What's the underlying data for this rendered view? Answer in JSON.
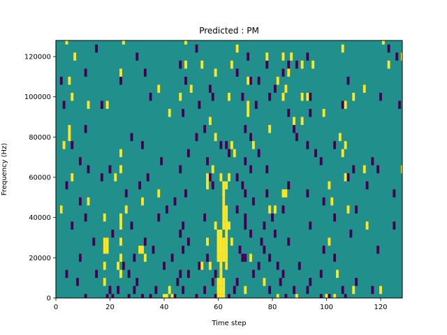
{
  "chart_data": {
    "type": "heatmap",
    "title": "Predicted : PM",
    "xlabel": "Time step",
    "ylabel": "Frequency (Hz)",
    "xlim": [
      0,
      128
    ],
    "ylim": [
      0,
      128000
    ],
    "xticks": [
      0,
      20,
      40,
      60,
      80,
      100,
      120
    ],
    "yticks": [
      0,
      20000,
      40000,
      60000,
      80000,
      100000,
      120000
    ],
    "grid": false,
    "colors": {
      "background": "#21908d",
      "low": "#440154",
      "high": "#fde725"
    },
    "value_scale": "background = 0, low = -1, high = 1",
    "cell_height_hz": 4000,
    "low_cells": [
      [
        11,
        0
      ],
      [
        19,
        0
      ],
      [
        21,
        0
      ],
      [
        27,
        0
      ],
      [
        32,
        0
      ],
      [
        35,
        0
      ],
      [
        44,
        0
      ],
      [
        52,
        0
      ],
      [
        59,
        0
      ],
      [
        64,
        0
      ],
      [
        85,
        0
      ],
      [
        98,
        0
      ],
      [
        101,
        0
      ],
      [
        107,
        0
      ],
      [
        20,
        4000
      ],
      [
        23,
        4000
      ],
      [
        29,
        4000
      ],
      [
        37,
        4000
      ],
      [
        47,
        4000
      ],
      [
        55,
        4000
      ],
      [
        66,
        4000
      ],
      [
        79,
        4000
      ],
      [
        88,
        4000
      ],
      [
        93,
        4000
      ],
      [
        106,
        4000
      ],
      [
        117,
        4000
      ],
      [
        8,
        8000
      ],
      [
        30,
        8000
      ],
      [
        45,
        8000
      ],
      [
        58,
        8000
      ],
      [
        67,
        8000
      ],
      [
        83,
        8000
      ],
      [
        94,
        8000
      ],
      [
        111,
        8000
      ],
      [
        4,
        12000
      ],
      [
        15,
        12000
      ],
      [
        27,
        12000
      ],
      [
        46,
        12000
      ],
      [
        49,
        12000
      ],
      [
        59,
        12000
      ],
      [
        73,
        12000
      ],
      [
        84,
        12000
      ],
      [
        98,
        12000
      ],
      [
        25,
        16000
      ],
      [
        40,
        16000
      ],
      [
        53,
        16000
      ],
      [
        63,
        16000
      ],
      [
        75,
        16000
      ],
      [
        82,
        16000
      ],
      [
        90,
        16000
      ],
      [
        9,
        20000
      ],
      [
        29,
        20000
      ],
      [
        43,
        20000
      ],
      [
        56,
        20000
      ],
      [
        69,
        20000
      ],
      [
        70,
        20000
      ],
      [
        79,
        20000
      ],
      [
        103,
        20000
      ],
      [
        36,
        24000
      ],
      [
        47,
        24000
      ],
      [
        68,
        24000
      ],
      [
        77,
        24000
      ],
      [
        99,
        24000
      ],
      [
        119,
        24000
      ],
      [
        14,
        28000
      ],
      [
        33,
        28000
      ],
      [
        49,
        28000
      ],
      [
        65,
        28000
      ],
      [
        76,
        28000
      ],
      [
        86,
        28000
      ],
      [
        21,
        32000
      ],
      [
        46,
        32000
      ],
      [
        72,
        32000
      ],
      [
        81,
        32000
      ],
      [
        109,
        32000
      ],
      [
        6,
        36000
      ],
      [
        28,
        36000
      ],
      [
        47,
        36000
      ],
      [
        70,
        36000
      ],
      [
        77,
        36000
      ],
      [
        94,
        36000
      ],
      [
        125,
        36000
      ],
      [
        11,
        40000
      ],
      [
        38,
        40000
      ],
      [
        55,
        40000
      ],
      [
        70,
        40000
      ],
      [
        80,
        40000
      ],
      [
        103,
        40000
      ],
      [
        2,
        44000
      ],
      [
        41,
        44000
      ],
      [
        67,
        44000
      ],
      [
        84,
        44000
      ],
      [
        111,
        44000
      ],
      [
        9,
        48000
      ],
      [
        44,
        48000
      ],
      [
        62,
        48000
      ],
      [
        73,
        48000
      ],
      [
        99,
        48000
      ],
      [
        26,
        52000
      ],
      [
        48,
        52000
      ],
      [
        70,
        52000
      ],
      [
        78,
        52000
      ],
      [
        93,
        52000
      ],
      [
        125,
        52000
      ],
      [
        4,
        56000
      ],
      [
        31,
        56000
      ],
      [
        58,
        56000
      ],
      [
        69,
        56000
      ],
      [
        86,
        56000
      ],
      [
        115,
        56000
      ],
      [
        17,
        60000
      ],
      [
        34,
        60000
      ],
      [
        57,
        60000
      ],
      [
        67,
        60000
      ],
      [
        108,
        60000
      ],
      [
        12,
        64000
      ],
      [
        20,
        64000
      ],
      [
        46,
        64000
      ],
      [
        72,
        64000
      ],
      [
        78,
        64000
      ],
      [
        110,
        64000
      ],
      [
        119,
        64000
      ],
      [
        9,
        68000
      ],
      [
        39,
        68000
      ],
      [
        56,
        68000
      ],
      [
        70,
        68000
      ],
      [
        98,
        68000
      ],
      [
        117,
        68000
      ],
      [
        49,
        72000
      ],
      [
        64,
        72000
      ],
      [
        75,
        72000
      ],
      [
        96,
        72000
      ],
      [
        6,
        76000
      ],
      [
        32,
        76000
      ],
      [
        61,
        76000
      ],
      [
        63,
        76000
      ],
      [
        93,
        76000
      ],
      [
        103,
        76000
      ],
      [
        28,
        80000
      ],
      [
        52,
        80000
      ],
      [
        72,
        80000
      ],
      [
        89,
        80000
      ],
      [
        11,
        84000
      ],
      [
        55,
        84000
      ],
      [
        70,
        84000
      ],
      [
        88,
        84000
      ],
      [
        47,
        92000
      ],
      [
        86,
        92000
      ],
      [
        94,
        92000
      ],
      [
        3,
        96000
      ],
      [
        17,
        96000
      ],
      [
        53,
        96000
      ],
      [
        74,
        96000
      ],
      [
        106,
        96000
      ],
      [
        127,
        96000
      ],
      [
        35,
        100000
      ],
      [
        58,
        100000
      ],
      [
        69,
        100000
      ],
      [
        79,
        100000
      ],
      [
        94,
        100000
      ],
      [
        120,
        100000
      ],
      [
        57,
        104000
      ],
      [
        81,
        104000
      ],
      [
        2,
        108000
      ],
      [
        24,
        108000
      ],
      [
        48,
        108000
      ],
      [
        72,
        108000
      ],
      [
        75,
        108000
      ],
      [
        108,
        108000
      ],
      [
        11,
        112000
      ],
      [
        33,
        112000
      ],
      [
        67,
        112000
      ],
      [
        84,
        112000
      ],
      [
        46,
        116000
      ],
      [
        78,
        116000
      ],
      [
        86,
        116000
      ],
      [
        89,
        116000
      ],
      [
        30,
        120000
      ],
      [
        71,
        120000
      ],
      [
        93,
        120000
      ],
      [
        126,
        120000
      ],
      [
        15,
        124000
      ],
      [
        52,
        124000
      ],
      [
        123,
        124000
      ]
    ],
    "high_cells": [
      [
        40,
        0
      ],
      [
        41,
        0
      ],
      [
        43,
        0
      ],
      [
        60,
        0
      ],
      [
        61,
        0
      ],
      [
        62,
        0
      ],
      [
        82,
        0
      ],
      [
        89,
        0
      ],
      [
        100,
        0
      ],
      [
        103,
        0
      ],
      [
        42,
        4000
      ],
      [
        60,
        4000
      ],
      [
        61,
        4000
      ],
      [
        62,
        4000
      ],
      [
        70,
        4000
      ],
      [
        110,
        4000
      ],
      [
        120,
        4000
      ],
      [
        18,
        8000
      ],
      [
        60,
        8000
      ],
      [
        61,
        8000
      ],
      [
        62,
        8000
      ],
      [
        77,
        8000
      ],
      [
        24,
        12000
      ],
      [
        61,
        12000
      ],
      [
        104,
        12000
      ],
      [
        18,
        16000
      ],
      [
        23,
        16000
      ],
      [
        54,
        16000
      ],
      [
        57,
        16000
      ],
      [
        61,
        16000
      ],
      [
        63,
        16000
      ],
      [
        24,
        20000
      ],
      [
        33,
        20000
      ],
      [
        60,
        20000
      ],
      [
        61,
        20000
      ],
      [
        62,
        20000
      ],
      [
        63,
        20000
      ],
      [
        72,
        20000
      ],
      [
        18,
        24000
      ],
      [
        19,
        24000
      ],
      [
        31,
        24000
      ],
      [
        32,
        24000
      ],
      [
        60,
        24000
      ],
      [
        61,
        24000
      ],
      [
        62,
        24000
      ],
      [
        63,
        24000
      ],
      [
        18,
        28000
      ],
      [
        19,
        28000
      ],
      [
        24,
        28000
      ],
      [
        56,
        28000
      ],
      [
        60,
        28000
      ],
      [
        61,
        28000
      ],
      [
        62,
        28000
      ],
      [
        63,
        28000
      ],
      [
        65,
        28000
      ],
      [
        101,
        28000
      ],
      [
        60,
        32000
      ],
      [
        61,
        32000
      ],
      [
        63,
        32000
      ],
      [
        24,
        36000
      ],
      [
        59,
        36000
      ],
      [
        62,
        36000
      ],
      [
        63,
        36000
      ],
      [
        64,
        36000
      ],
      [
        115,
        36000
      ],
      [
        18,
        40000
      ],
      [
        24,
        40000
      ],
      [
        62,
        40000
      ],
      [
        63,
        40000
      ],
      [
        2,
        44000
      ],
      [
        26,
        44000
      ],
      [
        62,
        44000
      ],
      [
        63,
        44000
      ],
      [
        79,
        44000
      ],
      [
        81,
        44000
      ],
      [
        108,
        44000
      ],
      [
        12,
        48000
      ],
      [
        32,
        48000
      ],
      [
        62,
        48000
      ],
      [
        102,
        48000
      ],
      [
        38,
        52000
      ],
      [
        62,
        52000
      ],
      [
        84,
        52000
      ],
      [
        85,
        52000
      ],
      [
        56,
        56000
      ],
      [
        62,
        56000
      ],
      [
        63,
        56000
      ],
      [
        101,
        56000
      ],
      [
        6,
        60000
      ],
      [
        22,
        60000
      ],
      [
        56,
        60000
      ],
      [
        61,
        60000
      ],
      [
        64,
        60000
      ],
      [
        107,
        60000
      ],
      [
        24,
        64000
      ],
      [
        58,
        64000
      ],
      [
        114,
        64000
      ],
      [
        128,
        64000
      ],
      [
        24,
        72000
      ],
      [
        66,
        72000
      ],
      [
        106,
        72000
      ],
      [
        3,
        76000
      ],
      [
        65,
        76000
      ],
      [
        73,
        76000
      ],
      [
        107,
        76000
      ],
      [
        5,
        80000
      ],
      [
        59,
        80000
      ],
      [
        105,
        80000
      ],
      [
        5,
        84000
      ],
      [
        79,
        84000
      ],
      [
        57,
        88000
      ],
      [
        88,
        88000
      ],
      [
        91,
        88000
      ],
      [
        42,
        92000
      ],
      [
        71,
        92000
      ],
      [
        99,
        92000
      ],
      [
        12,
        96000
      ],
      [
        19,
        96000
      ],
      [
        71,
        96000
      ],
      [
        107,
        96000
      ],
      [
        6,
        100000
      ],
      [
        46,
        100000
      ],
      [
        64,
        100000
      ],
      [
        84,
        100000
      ],
      [
        91,
        100000
      ],
      [
        93,
        100000
      ],
      [
        110,
        100000
      ],
      [
        38,
        104000
      ],
      [
        50,
        104000
      ],
      [
        85,
        104000
      ],
      [
        114,
        104000
      ],
      [
        5,
        108000
      ],
      [
        71,
        108000
      ],
      [
        82,
        108000
      ],
      [
        24,
        112000
      ],
      [
        59,
        112000
      ],
      [
        86,
        112000
      ],
      [
        48,
        116000
      ],
      [
        54,
        116000
      ],
      [
        65,
        116000
      ],
      [
        91,
        116000
      ],
      [
        95,
        116000
      ],
      [
        123,
        116000
      ],
      [
        7,
        120000
      ],
      [
        78,
        120000
      ],
      [
        84,
        120000
      ],
      [
        87,
        120000
      ],
      [
        128,
        120000
      ],
      [
        67,
        124000
      ],
      [
        106,
        124000
      ],
      [
        4,
        128000
      ],
      [
        25,
        128000
      ],
      [
        48,
        128000
      ],
      [
        121,
        128000
      ]
    ]
  }
}
